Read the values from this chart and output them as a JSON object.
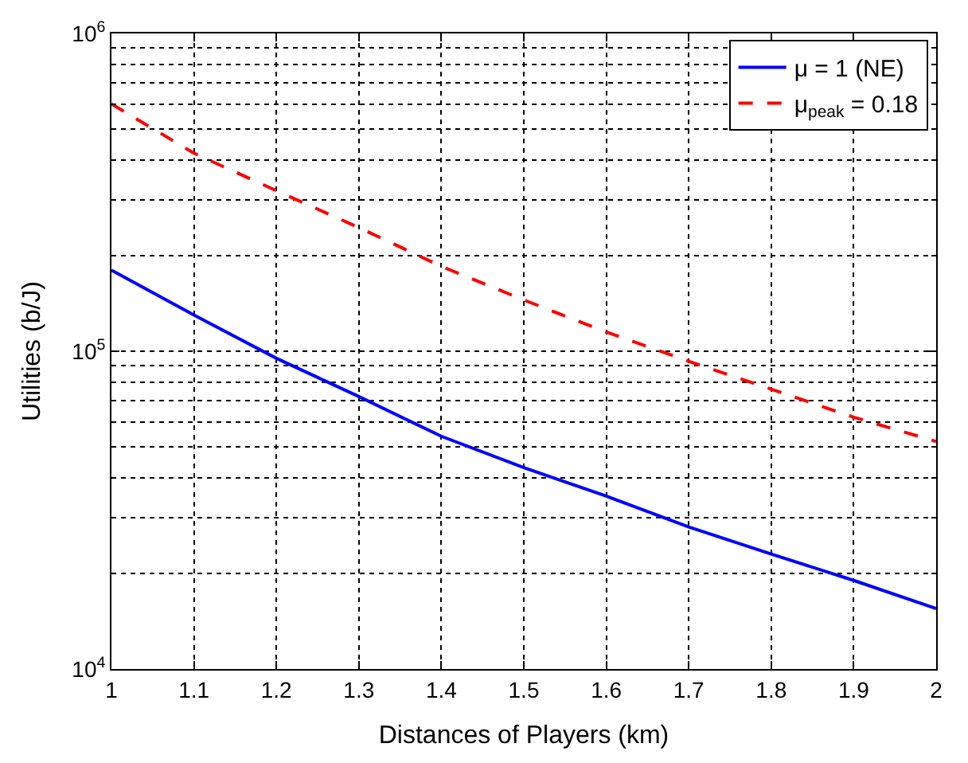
{
  "chart_data": {
    "type": "line",
    "xlabel": "Distances of Players (km)",
    "ylabel": "Utilities (b/J)",
    "log": "y",
    "grid": true,
    "legend": "top right",
    "marker": "none",
    "x": [
      1,
      1.1,
      1.2,
      1.3,
      1.4,
      1.5,
      1.6,
      1.7,
      1.8,
      1.9,
      2
    ],
    "xlim": [
      1,
      2
    ],
    "xticks": [
      1,
      1.1,
      1.2,
      1.3,
      1.4,
      1.5,
      1.6,
      1.7,
      1.8,
      1.9,
      2
    ],
    "ylim": [
      10000,
      1000000
    ],
    "yticks": [
      {
        "value": 10000,
        "label": "10$^{4}$"
      },
      {
        "value": 100000,
        "label": "10$^{5}$"
      },
      {
        "value": 1000000,
        "label": "10$^{6}$"
      }
    ],
    "series": [
      {
        "name": "μ = 1 (NE)",
        "color": "#0000ff",
        "line_style": "solid",
        "values": [
          180000,
          130000,
          95000,
          72000,
          54000,
          43000,
          35000,
          28000,
          23000,
          19000,
          15500
        ]
      },
      {
        "name": "μ$_{peak}$ = 0.18",
        "color": "#ff0000",
        "line_style": "dashed",
        "values": [
          600000,
          420000,
          320000,
          245000,
          185000,
          145000,
          115000,
          93000,
          76000,
          62000,
          52000
        ]
      }
    ]
  }
}
